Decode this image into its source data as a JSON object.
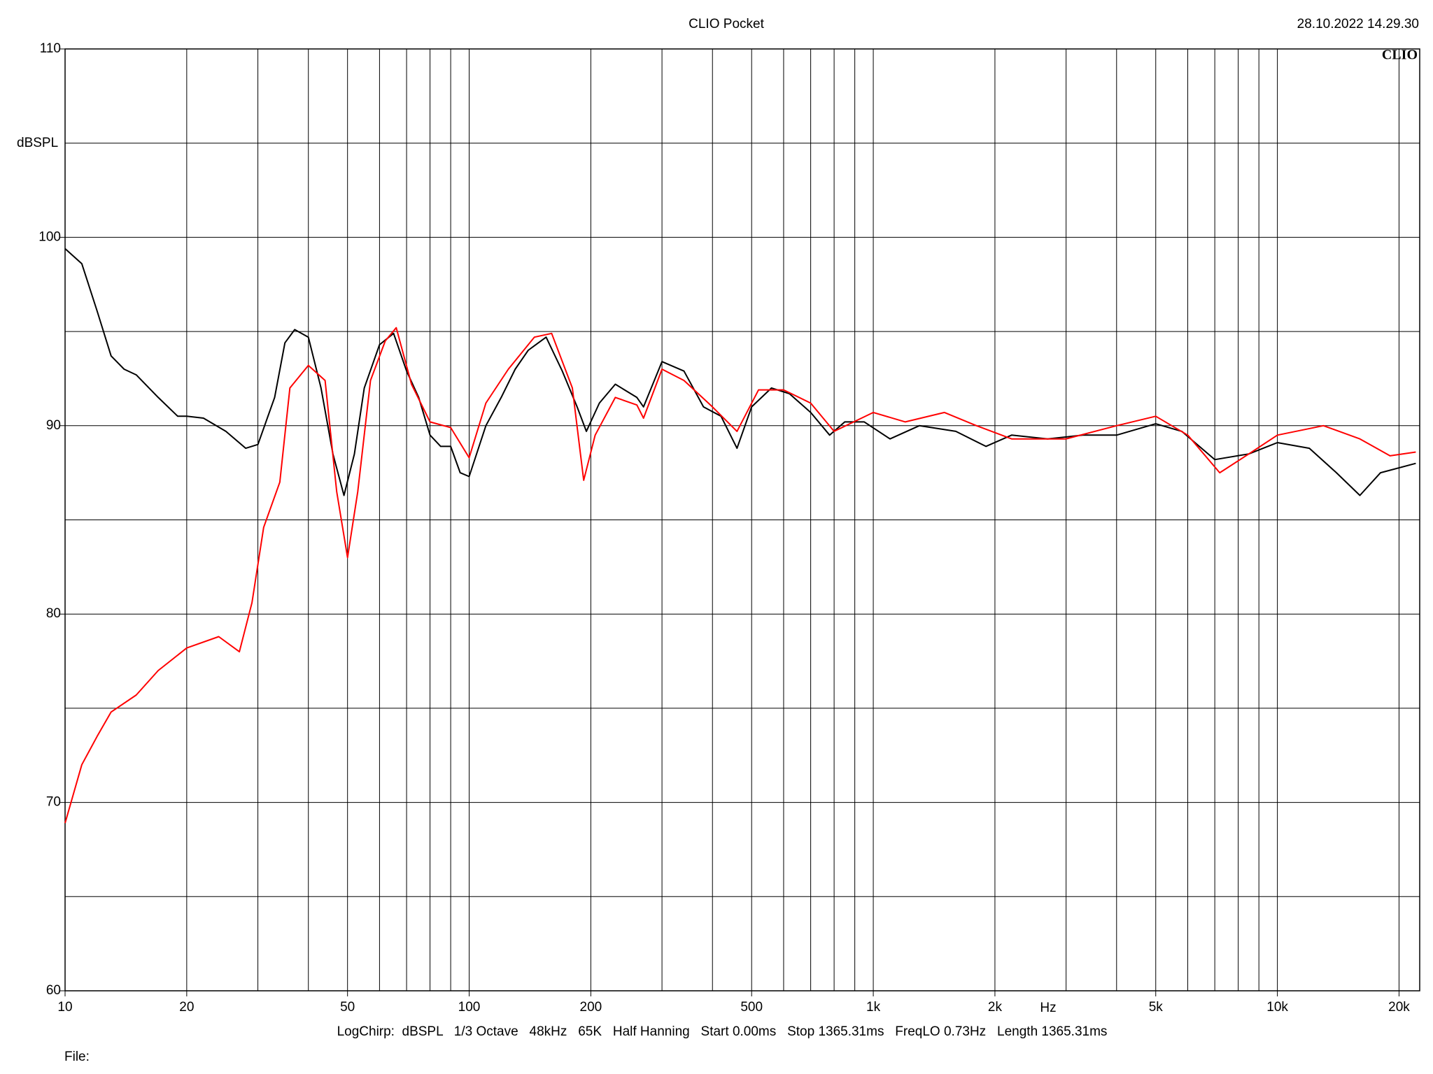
{
  "chart_data": {
    "type": "line",
    "title": "CLIO Pocket",
    "subtitle": "28.10.2022 14.29.30",
    "logo": "CLIO",
    "ylabel": "dBSPL",
    "xlabel": "Hz",
    "footer": "LogChirp:  dBSPL   1/3 Octave   48kHz   65K   Half Hanning   Start 0.00ms   Stop 1365.31ms   FreqLO 0.73Hz   Length 1365.31ms",
    "file_label": "File:",
    "log_x": true,
    "grid": true,
    "xlim": [
      10,
      22500
    ],
    "ylim": [
      60,
      110
    ],
    "xticks": [
      10,
      20,
      50,
      100,
      200,
      500,
      {
        "value": 1000,
        "label": "1k"
      },
      {
        "value": 2000,
        "label": "2k"
      },
      {
        "value": 5000,
        "label": "5k"
      },
      {
        "value": 10000,
        "label": "10k"
      },
      {
        "value": 20000,
        "label": "20k"
      }
    ],
    "xgrid_minor": [
      30,
      40,
      60,
      70,
      80,
      90,
      300,
      400,
      600,
      700,
      800,
      900,
      3000,
      4000,
      6000,
      7000,
      8000,
      9000
    ],
    "yticks": [
      60,
      70,
      80,
      90,
      100,
      110
    ],
    "ygrid_minor": [
      65,
      75,
      85,
      95,
      105
    ],
    "series": [
      {
        "color": "#000000",
        "x": [
          10,
          11,
          12,
          13,
          14,
          15,
          17,
          19,
          20,
          22,
          25,
          28,
          30,
          33,
          35,
          37,
          40,
          43,
          46,
          49,
          52,
          55,
          60,
          65,
          70,
          75,
          80,
          85,
          90,
          95,
          100,
          110,
          120,
          130,
          140,
          155,
          170,
          185,
          195,
          210,
          230,
          260,
          270,
          300,
          340,
          380,
          420,
          460,
          500,
          560,
          620,
          700,
          780,
          850,
          950,
          1100,
          1300,
          1600,
          1900,
          2200,
          2700,
          3300,
          4000,
          5000,
          5800,
          7000,
          8500,
          10000,
          12000,
          14000,
          16000,
          18000,
          22000
        ],
        "values": [
          99.4,
          98.6,
          96.1,
          93.7,
          93.0,
          92.7,
          91.5,
          90.5,
          90.5,
          90.4,
          89.7,
          88.8,
          89.0,
          91.5,
          94.4,
          95.1,
          94.7,
          92.0,
          88.5,
          86.3,
          88.5,
          92.0,
          94.3,
          94.9,
          92.9,
          91.5,
          89.5,
          88.9,
          88.9,
          87.5,
          87.3,
          90.0,
          91.5,
          93.0,
          94.0,
          94.7,
          92.9,
          91.0,
          89.7,
          91.2,
          92.2,
          91.5,
          91.0,
          93.4,
          92.9,
          91.0,
          90.5,
          88.8,
          91.0,
          92.0,
          91.7,
          90.7,
          89.5,
          90.2,
          90.2,
          89.3,
          90.0,
          89.7,
          88.9,
          89.5,
          89.3,
          89.5,
          89.5,
          90.1,
          89.7,
          88.2,
          88.5,
          89.1,
          88.8,
          87.5,
          86.3,
          87.5,
          88.0
        ]
      },
      {
        "color": "#ff0000",
        "x": [
          10,
          11,
          12,
          13,
          15,
          17,
          20,
          24,
          27,
          29,
          31,
          34,
          36,
          40,
          44,
          47,
          50,
          53,
          57,
          62,
          66,
          72,
          80,
          90,
          100,
          110,
          125,
          145,
          160,
          180,
          192,
          205,
          230,
          260,
          270,
          300,
          340,
          400,
          460,
          520,
          600,
          700,
          800,
          1000,
          1200,
          1500,
          1800,
          2200,
          3000,
          4000,
          5000,
          6000,
          7200,
          8500,
          10000,
          13000,
          16000,
          19000,
          22000
        ],
        "values": [
          68.9,
          72.0,
          73.5,
          74.8,
          75.7,
          77.0,
          78.2,
          78.8,
          78.0,
          80.6,
          84.6,
          87.0,
          92.0,
          93.2,
          92.4,
          86.5,
          83.0,
          86.5,
          92.4,
          94.5,
          95.2,
          92.2,
          90.2,
          89.9,
          88.3,
          91.2,
          93.0,
          94.7,
          94.9,
          92.0,
          87.1,
          89.5,
          91.5,
          91.1,
          90.4,
          93.0,
          92.4,
          91.0,
          89.7,
          91.9,
          91.9,
          91.2,
          89.7,
          90.7,
          90.2,
          90.7,
          90.0,
          89.3,
          89.3,
          90.0,
          90.5,
          89.5,
          87.5,
          88.5,
          89.5,
          90.0,
          89.3,
          88.4,
          88.6
        ]
      }
    ]
  }
}
